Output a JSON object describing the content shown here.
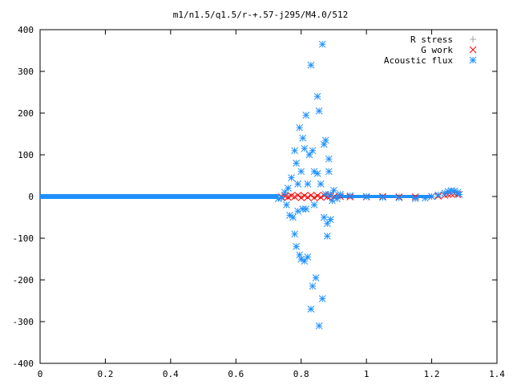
{
  "chart_data": {
    "type": "scatter",
    "title": "m1/n1.5/q1.5/r-+.57-j295/M4.0/512",
    "xlabel": "",
    "ylabel": "",
    "xlim": [
      0,
      1.4
    ],
    "ylim": [
      -400,
      400
    ],
    "x_ticks": [
      0,
      0.2,
      0.4,
      0.6,
      0.8,
      1,
      1.2,
      1.4
    ],
    "x_tick_labels": [
      "0",
      "0.2",
      "0.4",
      "0.6",
      "0.8",
      "1",
      "1.2",
      "1.4"
    ],
    "y_ticks": [
      -400,
      -300,
      -200,
      -100,
      0,
      100,
      200,
      300,
      400
    ],
    "y_tick_labels": [
      "-400",
      "-300",
      "-200",
      "-100",
      "0",
      "100",
      "200",
      "300",
      "400"
    ],
    "grid": false,
    "legend_position": "top-right",
    "series": [
      {
        "name": "R stress",
        "marker": "+",
        "color": "#a0a0a0",
        "points": [
          [
            0.76,
            0
          ],
          [
            0.8,
            1
          ],
          [
            0.84,
            -1
          ],
          [
            0.88,
            0
          ],
          [
            0.92,
            0
          ],
          [
            1.0,
            0
          ],
          [
            1.1,
            0
          ],
          [
            1.2,
            0
          ]
        ]
      },
      {
        "name": "G work",
        "marker": "x",
        "color": "#ff0000",
        "points": [
          [
            0.74,
            -1
          ],
          [
            0.75,
            1
          ],
          [
            0.76,
            -2
          ],
          [
            0.77,
            2
          ],
          [
            0.78,
            -1
          ],
          [
            0.79,
            3
          ],
          [
            0.8,
            -3
          ],
          [
            0.81,
            2
          ],
          [
            0.82,
            -2
          ],
          [
            0.83,
            3
          ],
          [
            0.84,
            -3
          ],
          [
            0.85,
            2
          ],
          [
            0.86,
            -2
          ],
          [
            0.87,
            3
          ],
          [
            0.88,
            -1
          ],
          [
            0.89,
            1
          ],
          [
            0.9,
            -1
          ],
          [
            0.92,
            0
          ],
          [
            0.95,
            -1
          ],
          [
            1.0,
            -1
          ],
          [
            1.05,
            0
          ],
          [
            1.1,
            -1
          ],
          [
            1.15,
            -1
          ],
          [
            1.2,
            0
          ],
          [
            1.22,
            1
          ],
          [
            1.24,
            3
          ],
          [
            1.25,
            5
          ],
          [
            1.26,
            6
          ],
          [
            1.27,
            7
          ],
          [
            1.28,
            5
          ]
        ]
      },
      {
        "name": "Acoustic flux",
        "marker": "*",
        "color": "#1e90ff",
        "points": [
          [
            0.73,
            -5
          ],
          [
            0.74,
            -3
          ],
          [
            0.75,
            10
          ],
          [
            0.755,
            -20
          ],
          [
            0.76,
            20
          ],
          [
            0.765,
            -45
          ],
          [
            0.77,
            45
          ],
          [
            0.775,
            -50
          ],
          [
            0.78,
            -90
          ],
          [
            0.78,
            110
          ],
          [
            0.785,
            -120
          ],
          [
            0.785,
            80
          ],
          [
            0.79,
            -35
          ],
          [
            0.79,
            30
          ],
          [
            0.795,
            165
          ],
          [
            0.795,
            -140
          ],
          [
            0.8,
            -150
          ],
          [
            0.8,
            60
          ],
          [
            0.805,
            140
          ],
          [
            0.805,
            -30
          ],
          [
            0.81,
            115
          ],
          [
            0.81,
            -155
          ],
          [
            0.815,
            195
          ],
          [
            0.815,
            -30
          ],
          [
            0.82,
            -145
          ],
          [
            0.82,
            30
          ],
          [
            0.825,
            100
          ],
          [
            0.83,
            315
          ],
          [
            0.83,
            -270
          ],
          [
            0.835,
            110
          ],
          [
            0.835,
            -215
          ],
          [
            0.84,
            60
          ],
          [
            0.84,
            -20
          ],
          [
            0.845,
            -195
          ],
          [
            0.85,
            240
          ],
          [
            0.85,
            55
          ],
          [
            0.855,
            -310
          ],
          [
            0.855,
            205
          ],
          [
            0.86,
            30
          ],
          [
            0.865,
            365
          ],
          [
            0.865,
            -245
          ],
          [
            0.87,
            125
          ],
          [
            0.87,
            -50
          ],
          [
            0.875,
            135
          ],
          [
            0.875,
            5
          ],
          [
            0.88,
            -95
          ],
          [
            0.88,
            -65
          ],
          [
            0.885,
            90
          ],
          [
            0.885,
            60
          ],
          [
            0.89,
            -55
          ],
          [
            0.89,
            5
          ],
          [
            0.895,
            -10
          ],
          [
            0.9,
            15
          ],
          [
            0.91,
            -5
          ],
          [
            0.92,
            5
          ],
          [
            0.95,
            2
          ],
          [
            1.0,
            0
          ],
          [
            1.05,
            -2
          ],
          [
            1.1,
            -3
          ],
          [
            1.15,
            -5
          ],
          [
            1.18,
            -4
          ],
          [
            1.2,
            0
          ],
          [
            1.22,
            4
          ],
          [
            1.24,
            8
          ],
          [
            1.25,
            12
          ],
          [
            1.26,
            14
          ],
          [
            1.27,
            13
          ],
          [
            1.28,
            10
          ],
          [
            1.285,
            5
          ]
        ]
      }
    ]
  }
}
